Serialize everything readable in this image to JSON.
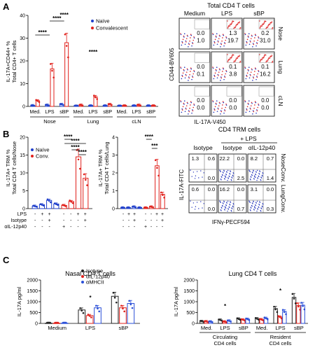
{
  "panels": {
    "A": "A",
    "B": "B",
    "C": "C"
  },
  "colors": {
    "naive": "#1f3fcc",
    "conv": "#e0201b",
    "isotype": "#222222",
    "il12": "#e0201b",
    "mhc": "#2a4fd8",
    "dot_blue": "#2233bb",
    "dot_red": "#dd2222"
  },
  "chart_data": [
    {
      "id": "A_bar",
      "type": "bar",
      "ylabel": [
        "IL-17A+CD44+ %",
        "Total CD4+ T cells"
      ],
      "ylim": [
        0,
        40
      ],
      "yticks": [
        0,
        10,
        20,
        30,
        40
      ],
      "categories": [
        "Med.",
        "LPS",
        "sBP",
        "Med.",
        "LPS",
        "sBP",
        "Med.",
        "LPS",
        "sBP"
      ],
      "groups": [
        "Nose",
        "Lung",
        "cLN"
      ],
      "series": [
        {
          "name": "Naïve",
          "values": [
            0.4,
            0.6,
            0.9,
            0.2,
            0.3,
            0.3,
            0.2,
            0.3,
            0.3
          ]
        },
        {
          "name": "Convalescent",
          "values": [
            2.5,
            16.5,
            28.0,
            0.6,
            4.2,
            0.9,
            0.3,
            0.6,
            0.3
          ]
        }
      ],
      "significance": [
        {
          "label": "****",
          "pair": [
            1,
            2
          ]
        },
        {
          "label": "****",
          "pair": [
            0,
            1
          ]
        },
        {
          "label": "****",
          "pair": [
            2,
            2
          ]
        },
        {
          "label": "****",
          "pair": [
            4,
            4
          ]
        }
      ]
    },
    {
      "id": "A_flow",
      "type": "table",
      "title": "Total CD4 T cells",
      "columns": [
        "Medium",
        "LPS",
        "sBP"
      ],
      "rows": [
        "Nose",
        "Lung",
        "cLN"
      ],
      "xlabel": "IL-17A-V450",
      "ylabel": "CD44-BV605",
      "blue": [
        [
          "0.0",
          "1.3",
          "0.2"
        ],
        [
          "0.0",
          "0.1",
          "0.1"
        ],
        [
          "0.0",
          "0.0",
          "0.0"
        ]
      ],
      "red": [
        [
          "1.0",
          "19.7",
          "31.0"
        ],
        [
          "0.1",
          "3.8",
          "16.2"
        ],
        [
          "0.0",
          "0.0",
          "0.0"
        ]
      ]
    },
    {
      "id": "B_nose",
      "type": "bar",
      "ylabel": [
        "IL-17A+ TRM %",
        "Total CD4 T cells/Nose"
      ],
      "ylim": [
        0,
        20
      ],
      "yticks": [
        0,
        5,
        10,
        15,
        20
      ],
      "legend": [
        "Naïve",
        "Conv."
      ],
      "series": [
        {
          "name": "Naïve",
          "values": [
            0.7,
            1.1,
            2.3,
            1.3
          ]
        },
        {
          "name": "Conv.",
          "values": [
            0.9,
            2.0,
            14.5,
            8.5
          ]
        }
      ],
      "table": {
        "rows": [
          "LPS",
          "Isotype",
          "αIL-12p40"
        ],
        "values": [
          [
            "-",
            "+",
            "+",
            "-",
            "-",
            "+",
            "+"
          ],
          [
            "-",
            "-",
            "+",
            "-",
            "-",
            "-",
            "+"
          ],
          [
            "-",
            "-",
            "-",
            "+",
            "-",
            "-",
            "-"
          ]
        ]
      },
      "significance": [
        "****",
        "****",
        "****",
        "****"
      ]
    },
    {
      "id": "B_lung",
      "type": "bar",
      "ylabel": [
        "IL-17A+ TRM %",
        "Total CD4 T cells/Lung"
      ],
      "ylim": [
        0,
        4
      ],
      "yticks": [
        0,
        1,
        2,
        3,
        4
      ],
      "series": [
        {
          "name": "Naïve",
          "values": [
            0.05,
            0.05,
            0.1,
            0.05
          ]
        },
        {
          "name": "Conv.",
          "values": [
            0.05,
            0.1,
            2.4,
            0.8
          ]
        }
      ],
      "table": {
        "rows": [
          "LPS",
          "Isotype",
          "αIL-12p40"
        ],
        "values": [
          [
            "-",
            "+",
            "+",
            "-",
            "-",
            "+",
            "+"
          ],
          [
            "-",
            "-",
            "+",
            "-",
            "-",
            "-",
            "+"
          ],
          [
            "-",
            "-",
            "-",
            "+",
            "-",
            "-",
            "-"
          ]
        ]
      },
      "significance": [
        "****",
        "***"
      ]
    },
    {
      "id": "B_flow",
      "type": "table",
      "title": "CD4 TRM cells",
      "subtitle": "+ LPS",
      "columns": [
        "Isotype",
        "Isotype",
        "αIL-12p40"
      ],
      "rows": [
        "NoseConv.",
        "LungConv."
      ],
      "xlabel": "IFNγ-PECF594",
      "ylabel": "IL-17A-FITC",
      "quadrants": [
        [
          [
            "1.3",
            "0.6",
            "0.0"
          ],
          [
            "22.2",
            "0.0",
            "2.5"
          ],
          [
            "8.2",
            "0.7",
            "1.4"
          ]
        ],
        [
          [
            "0.6",
            "0.0",
            "0.0"
          ],
          [
            "16.2",
            "0.0",
            "0.7"
          ],
          [
            "3.1",
            "0.0",
            "0.3"
          ]
        ]
      ],
      "extra": [
        [
          "0.6",
          "0.5"
        ],
        [
          "0.2",
          "0.0"
        ]
      ]
    },
    {
      "id": "C_nasal",
      "type": "bar",
      "title": "Nasal CD4 T cells",
      "ylabel": "IL-17A pg/ml",
      "ylim": [
        0,
        2000
      ],
      "yticks": [
        0,
        500,
        1000,
        1500,
        2000
      ],
      "categories": [
        "Medium",
        "LPS",
        "sBP"
      ],
      "legend": [
        "Isotype",
        "αIL-12p40",
        "αMHCII"
      ],
      "series": [
        {
          "name": "Isotype",
          "values": [
            10,
            620,
            1250
          ]
        },
        {
          "name": "αIL-12p40",
          "values": [
            8,
            360,
            720
          ]
        },
        {
          "name": "αMHCII",
          "values": [
            10,
            720,
            920
          ]
        }
      ],
      "significance": [
        "*"
      ]
    },
    {
      "id": "C_lung",
      "type": "bar",
      "title": "Lung CD4 T cells",
      "ylabel": "IL-17A pg/ml",
      "ylim": [
        0,
        2000
      ],
      "yticks": [
        0,
        500,
        1000,
        1500,
        2000
      ],
      "categories": [
        "Med.",
        "LPS",
        "sBP",
        "Med.",
        "LPS",
        "sBP"
      ],
      "groups": [
        "Circulating CD4 cells",
        "Resident CD4 cells"
      ],
      "series": [
        {
          "name": "Isotype",
          "values": [
            100,
            160,
            210,
            220,
            680,
            1200
          ]
        },
        {
          "name": "αIL-12p40",
          "values": [
            90,
            80,
            170,
            180,
            300,
            820
          ]
        },
        {
          "name": "αMHCII",
          "values": [
            80,
            120,
            200,
            240,
            550,
            840
          ]
        }
      ],
      "significance": [
        "*",
        "*"
      ]
    }
  ]
}
